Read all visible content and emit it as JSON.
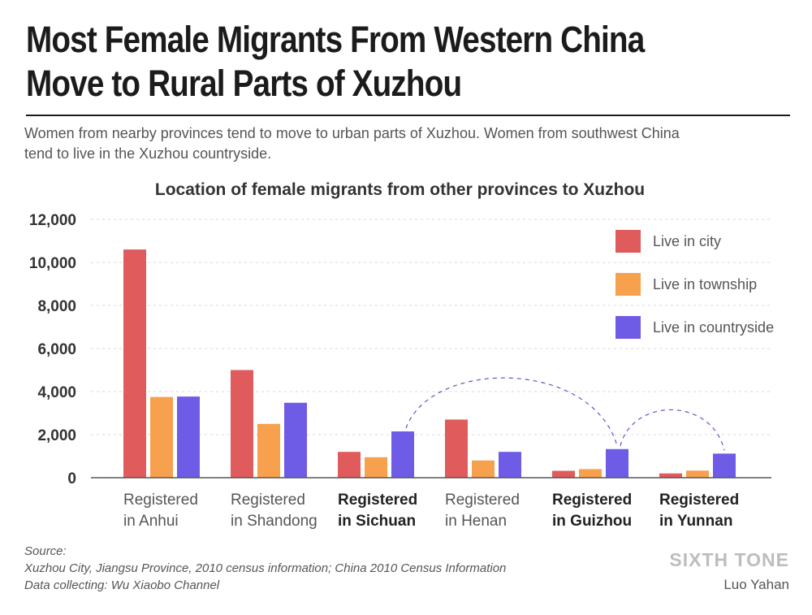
{
  "header": {
    "title_lines": [
      "Most Female Migrants From Western China",
      "Move to Rural Parts of Xuzhou"
    ],
    "subtitle_lines": [
      "Women from nearby provinces tend to move to urban parts of Xuzhou. Women from southwest China",
      "tend to live in the Xuzhou countryside."
    ]
  },
  "chart_data": {
    "type": "bar",
    "title": "Location of female migrants from other provinces to Xuzhou",
    "xlabel": "",
    "ylabel": "",
    "ylim": [
      0,
      12000
    ],
    "yticks": [
      0,
      2000,
      4000,
      6000,
      8000,
      10000,
      12000
    ],
    "ytick_labels": [
      "0",
      "2,000",
      "4,000",
      "6,000",
      "8,000",
      "10,000",
      "12,000"
    ],
    "grid": "horizontal dashed",
    "categories": [
      {
        "lines": [
          "Registered",
          "in Anhui"
        ],
        "bold": false
      },
      {
        "lines": [
          "Registered",
          "in Shandong"
        ],
        "bold": false
      },
      {
        "lines": [
          "Registered",
          "in Sichuan"
        ],
        "bold": true
      },
      {
        "lines": [
          "Registered",
          "in Henan"
        ],
        "bold": false
      },
      {
        "lines": [
          "Registered",
          "in Guizhou"
        ],
        "bold": true
      },
      {
        "lines": [
          "Registered",
          "in Yunnan"
        ],
        "bold": true
      }
    ],
    "series": [
      {
        "name": "Live in city",
        "color": "#e05b5b",
        "values": [
          10600,
          5000,
          1200,
          2700,
          320,
          200
        ]
      },
      {
        "name": "Live in township",
        "color": "#f7a04d",
        "values": [
          3750,
          2500,
          950,
          800,
          400,
          330
        ]
      },
      {
        "name": "Live in countryside",
        "color": "#6f5ce6",
        "values": [
          3770,
          3480,
          2150,
          1200,
          1330,
          1120
        ]
      }
    ],
    "legend": "top-right",
    "annotations": [
      {
        "type": "dashed-arc",
        "from": {
          "category": 2,
          "series": 2
        },
        "to": {
          "category": 4,
          "series": 2
        }
      },
      {
        "type": "dashed-arc",
        "from": {
          "category": 4,
          "series": 2
        },
        "to": {
          "category": 5,
          "series": 2
        }
      }
    ]
  },
  "footer": {
    "source_lines": [
      "Source:",
      "Xuzhou City, Jiangsu Province, 2010 census information; China 2010 Census Information",
      "Data collecting: Wu Xiaobo Channel"
    ],
    "brand": "SIXTH TONE",
    "author": "Luo Yahan"
  }
}
